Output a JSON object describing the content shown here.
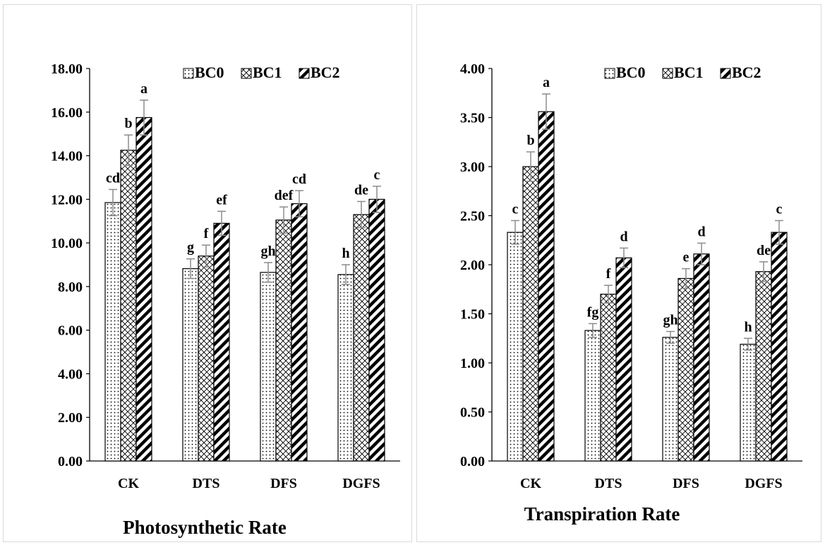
{
  "patterns": {
    "BC0": "dots",
    "BC1": "crosshatch",
    "BC2": "thick-diagonal-stripes"
  },
  "chart_data": [
    {
      "type": "bar",
      "xlabel": "Photosynthetic Rate",
      "ylabel": "",
      "ylim": [
        0,
        18
      ],
      "ytick_step": 2,
      "ytick_labels": [
        "0.00",
        "2.00",
        "4.00",
        "6.00",
        "8.00",
        "10.00",
        "12.00",
        "14.00",
        "16.00",
        "18.00"
      ],
      "categories": [
        "CK",
        "DTS",
        "DFS",
        "DGFS"
      ],
      "legend_position": "top-right",
      "grid": false,
      "series": [
        {
          "name": "BC0",
          "values": [
            11.85,
            8.82,
            8.65,
            8.55
          ],
          "errors": [
            0.6,
            0.45,
            0.45,
            0.45
          ],
          "labels": [
            "cd",
            "g",
            "gh",
            "h"
          ]
        },
        {
          "name": "BC1",
          "values": [
            14.25,
            9.4,
            11.05,
            11.3
          ],
          "errors": [
            0.7,
            0.5,
            0.6,
            0.6
          ],
          "labels": [
            "b",
            "f",
            "def",
            "de"
          ]
        },
        {
          "name": "BC2",
          "values": [
            15.75,
            10.9,
            11.8,
            12.0
          ],
          "errors": [
            0.8,
            0.55,
            0.6,
            0.6
          ],
          "labels": [
            "a",
            "ef",
            "cd",
            "c"
          ]
        }
      ]
    },
    {
      "type": "bar",
      "xlabel": "Transpiration Rate",
      "ylabel": "",
      "ylim": [
        0,
        4
      ],
      "ytick_step": 0.5,
      "ytick_labels": [
        "0.00",
        "0.50",
        "1.00",
        "1.50",
        "2.00",
        "2.50",
        "3.00",
        "3.50",
        "4.00"
      ],
      "categories": [
        "CK",
        "DTS",
        "DFS",
        "DGFS"
      ],
      "legend_position": "top-right",
      "grid": false,
      "series": [
        {
          "name": "BC0",
          "values": [
            2.33,
            1.33,
            1.26,
            1.19
          ],
          "errors": [
            0.12,
            0.07,
            0.06,
            0.06
          ],
          "labels": [
            "c",
            "fg",
            "gh",
            "h"
          ]
        },
        {
          "name": "BC1",
          "values": [
            3.0,
            1.7,
            1.86,
            1.93
          ],
          "errors": [
            0.15,
            0.09,
            0.1,
            0.1
          ],
          "labels": [
            "b",
            "f",
            "e",
            "de"
          ]
        },
        {
          "name": "BC2",
          "values": [
            3.56,
            2.07,
            2.11,
            2.33
          ],
          "errors": [
            0.18,
            0.1,
            0.11,
            0.12
          ],
          "labels": [
            "a",
            "d",
            "d",
            "c"
          ]
        }
      ]
    }
  ]
}
